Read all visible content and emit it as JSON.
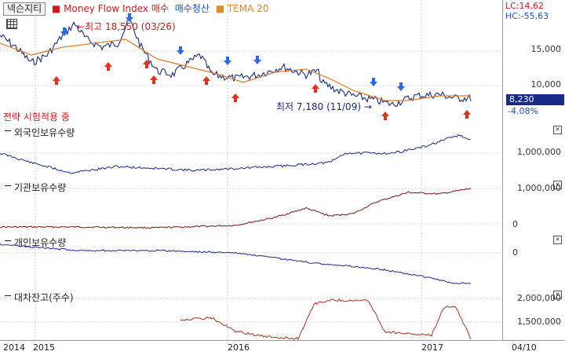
{
  "header": {
    "stock_name": "넥슨지티",
    "indicators": [
      {
        "label": "Money Flow Index 매수",
        "color": "#d21a1a"
      },
      {
        "label": "매수청산",
        "color": "#1a4fd2"
      },
      {
        "label": "TEMA 20",
        "color": "#e08a2a"
      }
    ]
  },
  "price_axis": {
    "lc": "LC:14,62",
    "hc": "HC:-55,63",
    "ticks": [
      "15,000",
      "10,000"
    ],
    "current_price": "8,230",
    "change_pct": "-4.08%"
  },
  "annotations": {
    "high": "최고 18,550 (03/26)",
    "low": "최저 7,180 (11/09)",
    "strategy": "전략 시험적용 중"
  },
  "panels": [
    {
      "title": "외국인보유수량",
      "ticks": [
        "1,000,000"
      ]
    },
    {
      "title": "기관보유수량",
      "ticks": [
        "1,000,000",
        "0"
      ]
    },
    {
      "title": "개인보유수량",
      "ticks": [
        "0"
      ]
    },
    {
      "title": "대차잔고(주수)",
      "ticks": [
        "2,000,000",
        "1,500,000"
      ]
    }
  ],
  "x_axis": {
    "labels": [
      "2014",
      "2015",
      "2016",
      "2017"
    ],
    "right_label": "04/10"
  },
  "colors": {
    "price": "#1a2a8a",
    "tema": "#e07a20",
    "foreign": "#1a2a8a",
    "institution": "#7a1414",
    "individual": "#1a2a8a",
    "lending": "#b03018",
    "buy_signal": "#e8301a",
    "sell_signal": "#2a6ae8"
  },
  "chart_data": {
    "type": "line",
    "x": [
      "2014",
      "2015",
      "2016",
      "2017"
    ],
    "series": [],
    "y_ticks_price": [
      "15,000",
      "10,000"
    ]
  }
}
